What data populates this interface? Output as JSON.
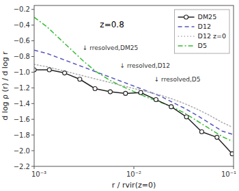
{
  "chart_data": {
    "type": "line",
    "title": "z=0.8",
    "xlabel": "r / rvir(z=0)",
    "ylabel": "d log ρ (r) / d log r",
    "log": "x",
    "grid": false,
    "legend": "upper right",
    "xlim": [
      0.001,
      0.1
    ],
    "xticks": [
      {
        "value": 0.001,
        "label": "10⁻³"
      },
      {
        "value": 0.01,
        "label": "10⁻²"
      },
      {
        "value": 0.1,
        "label": "10⁻¹"
      }
    ],
    "ylim": [
      -2.2,
      -0.15
    ],
    "yticks": [
      {
        "value": -2.2,
        "label": "−2.2"
      },
      {
        "value": -2.0,
        "label": "−2.0"
      },
      {
        "value": -1.8,
        "label": "−1.8"
      },
      {
        "value": -1.6,
        "label": "−1.6"
      },
      {
        "value": -1.4,
        "label": "−1.4"
      },
      {
        "value": -1.2,
        "label": "−1.2"
      },
      {
        "value": -1.0,
        "label": "−1.0"
      },
      {
        "value": -0.8,
        "label": "−0.8"
      },
      {
        "value": -0.6,
        "label": "−0.6"
      },
      {
        "value": -0.4,
        "label": "−0.4"
      },
      {
        "value": -0.2,
        "label": "−0.2"
      }
    ],
    "series": [
      {
        "name": "DM25",
        "color": "#222222",
        "line_style": "solid",
        "marker": "circle",
        "x": [
          0.001,
          0.00142,
          0.00202,
          0.00287,
          0.00408,
          0.0058,
          0.00825,
          0.01173,
          0.01668,
          0.02372,
          0.03373,
          0.04797,
          0.06823,
          0.097
        ],
        "values": [
          -0.97,
          -0.97,
          -1.01,
          -1.09,
          -1.21,
          -1.25,
          -1.27,
          -1.26,
          -1.35,
          -1.44,
          -1.57,
          -1.76,
          -1.83,
          -2.04
        ]
      },
      {
        "name": "D12",
        "color": "#5555bb",
        "line_style": "dashed",
        "x": [
          0.001,
          0.00134,
          0.00179,
          0.00239,
          0.00319,
          0.00426,
          0.00569,
          0.0076,
          0.01015,
          0.01354,
          0.01808,
          0.02414,
          0.03223,
          0.04302,
          0.05745,
          0.07669,
          0.097
        ],
        "values": [
          -0.72,
          -0.76,
          -0.82,
          -0.88,
          -0.94,
          -1.0,
          -1.06,
          -1.12,
          -1.18,
          -1.24,
          -1.3,
          -1.38,
          -1.46,
          -1.55,
          -1.65,
          -1.75,
          -1.79
        ]
      },
      {
        "name": "D12 z=0",
        "color": "#aaaaaa",
        "line_style": "dotted",
        "x": [
          0.001,
          0.00134,
          0.00179,
          0.00239,
          0.00319,
          0.00426,
          0.00569,
          0.0076,
          0.01015,
          0.01354,
          0.01808,
          0.02414,
          0.03223,
          0.04302,
          0.05745,
          0.07669,
          0.097
        ],
        "values": [
          -0.9,
          -0.93,
          -0.97,
          -1.01,
          -1.05,
          -1.09,
          -1.13,
          -1.17,
          -1.21,
          -1.25,
          -1.29,
          -1.34,
          -1.4,
          -1.47,
          -1.55,
          -1.64,
          -1.7
        ]
      },
      {
        "name": "D5",
        "color": "#33bb33",
        "line_style": "dashdot",
        "x": [
          0.001,
          0.00134,
          0.00179,
          0.00239,
          0.00319,
          0.00426,
          0.00569,
          0.0076,
          0.01015,
          0.01354,
          0.01808,
          0.02414,
          0.03223,
          0.04302,
          0.05745,
          0.07669,
          0.097
        ],
        "values": [
          -0.3,
          -0.42,
          -0.57,
          -0.72,
          -0.87,
          -1.0,
          -1.1,
          -1.18,
          -1.25,
          -1.32,
          -1.38,
          -1.44,
          -1.52,
          -1.62,
          -1.72,
          -1.82,
          -1.88
        ]
      }
    ],
    "annotations": [
      {
        "text": "↓ rresolved,DM25",
        "x": 0.00287,
        "y": -0.72
      },
      {
        "text": "↓ rresolved,D12",
        "x": 0.0068,
        "y": -0.94
      },
      {
        "text": "↓ rresolved,D5",
        "x": 0.015,
        "y": -1.12
      }
    ]
  }
}
